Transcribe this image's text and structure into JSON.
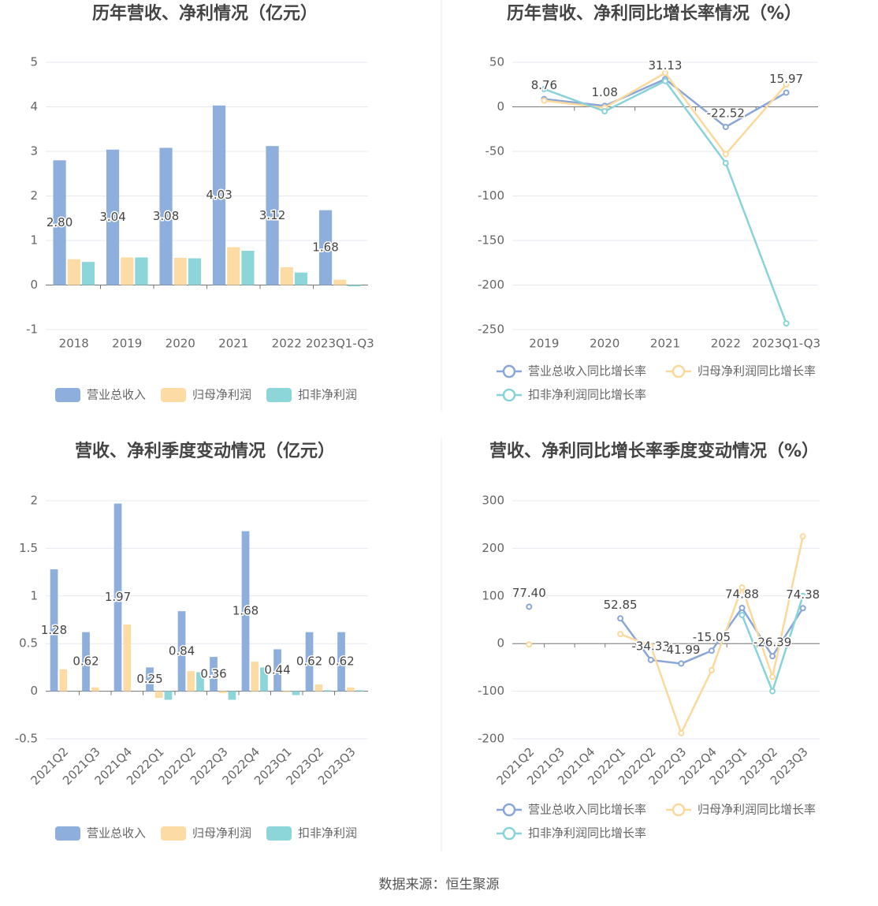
{
  "chart_data": [
    {
      "type": "bar",
      "title": "历年营收、净利情况（亿元）",
      "categories": [
        "2018",
        "2019",
        "2020",
        "2021",
        "2022",
        "2023Q1-Q3"
      ],
      "ylim": [
        -1,
        5
      ],
      "yticks": [
        -1,
        0,
        1,
        2,
        3,
        4,
        5
      ],
      "grid": true,
      "series": [
        {
          "name": "营业总收入",
          "color": "#8eaedc",
          "labels": true,
          "values": [
            2.8,
            3.04,
            3.08,
            4.03,
            3.12,
            1.68
          ],
          "value_labels": [
            "2.80",
            "3.04",
            "3.08",
            "4.03",
            "3.12",
            "1.68"
          ]
        },
        {
          "name": "归母净利润",
          "color": "#fddba5",
          "values": [
            0.58,
            0.62,
            0.61,
            0.85,
            0.4,
            0.12
          ]
        },
        {
          "name": "扣非净利润",
          "color": "#8cd5d9",
          "values": [
            0.52,
            0.62,
            0.6,
            0.77,
            0.28,
            -0.03
          ]
        }
      ]
    },
    {
      "type": "line",
      "title": "历年营收、净利同比增长率情况（%）",
      "categories": [
        "2019",
        "2020",
        "2021",
        "2022",
        "2023Q1-Q3"
      ],
      "ylim": [
        -250,
        50
      ],
      "yticks": [
        -250,
        -200,
        -150,
        -100,
        -50,
        0,
        50
      ],
      "grid": true,
      "series": [
        {
          "name": "营业总收入同比增长率",
          "color": "#8aa6d8",
          "labels": true,
          "values": [
            8.76,
            1.08,
            31.13,
            -22.52,
            15.97
          ]
        },
        {
          "name": "归母净利润同比增长率",
          "color": "#fbd89b",
          "values": [
            7,
            -1,
            38,
            -53,
            25
          ]
        },
        {
          "name": "扣非净利润同比增长率",
          "color": "#88d3d8",
          "values": [
            20,
            -5,
            29,
            -63,
            -243
          ]
        }
      ]
    },
    {
      "type": "bar",
      "title": "营收、净利季度变动情况（亿元）",
      "categories": [
        "2021Q2",
        "2021Q3",
        "2021Q4",
        "2022Q1",
        "2022Q2",
        "2022Q3",
        "2022Q4",
        "2023Q1",
        "2023Q2",
        "2023Q3"
      ],
      "ylim": [
        -0.5,
        2
      ],
      "yticks": [
        -0.5,
        0,
        0.5,
        1,
        1.5,
        2
      ],
      "grid": true,
      "series": [
        {
          "name": "营业总收入",
          "color": "#8eaedc",
          "labels": true,
          "values": [
            1.28,
            0.62,
            1.97,
            0.25,
            0.84,
            0.36,
            1.68,
            0.44,
            0.62,
            0.62
          ]
        },
        {
          "name": "归母净利润",
          "color": "#fddba5",
          "values": [
            0.23,
            0.04,
            0.7,
            -0.07,
            0.21,
            -0.02,
            0.31,
            -0.01,
            0.07,
            0.04
          ]
        },
        {
          "name": "扣非净利润",
          "color": "#8cd5d9",
          "values": [
            null,
            null,
            null,
            -0.09,
            0.2,
            -0.09,
            0.25,
            -0.04,
            0.01,
            0.01
          ]
        }
      ]
    },
    {
      "type": "line",
      "title": "营收、净利同比增长率季度变动情况（%）",
      "categories": [
        "2021Q2",
        "2021Q3",
        "2021Q4",
        "2022Q1",
        "2022Q2",
        "2022Q3",
        "2022Q4",
        "2023Q1",
        "2023Q2",
        "2023Q3"
      ],
      "ylim": [
        -200,
        300
      ],
      "yticks": [
        -200,
        -100,
        0,
        100,
        200,
        300
      ],
      "grid": true,
      "series": [
        {
          "name": "营业总收入同比增长率",
          "color": "#8aa6d8",
          "labels": true,
          "values": [
            77.4,
            null,
            null,
            52.85,
            -34.33,
            -41.99,
            -15.05,
            74.88,
            -26.39,
            74.38
          ],
          "value_labels": [
            "77.40",
            null,
            null,
            "52.85",
            "-34.33",
            "-41.99",
            "-15.05",
            "74.88",
            "-26.39",
            "74.38"
          ]
        },
        {
          "name": "归母净利润同比增长率",
          "color": "#fbd89b",
          "values": [
            -2,
            null,
            null,
            20,
            -5,
            -188,
            -56,
            118,
            -70,
            225
          ]
        },
        {
          "name": "扣非净利润同比增长率",
          "color": "#88d3d8",
          "values": [
            null,
            null,
            null,
            null,
            null,
            null,
            null,
            60,
            -100,
            100
          ]
        }
      ]
    }
  ],
  "source": "数据来源：恒生聚源"
}
